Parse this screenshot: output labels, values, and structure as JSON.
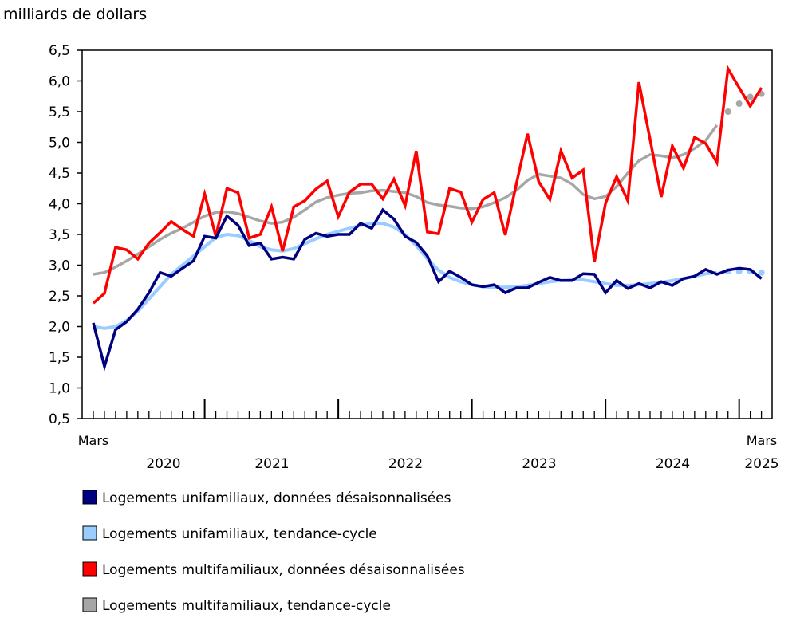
{
  "chart_data": {
    "type": "line",
    "ylabel": "milliards de dollars",
    "ylim": [
      0.5,
      6.5
    ],
    "yticks": [
      "0,5",
      "1,0",
      "1,5",
      "2,0",
      "2,5",
      "3,0",
      "3,5",
      "4,0",
      "4,5",
      "5,0",
      "5,5",
      "6,0",
      "6,5"
    ],
    "ytick_values": [
      0.5,
      1,
      1.5,
      2,
      2.5,
      3,
      3.5,
      4,
      4.5,
      5,
      5.5,
      6,
      6.5
    ],
    "x_start": "Mars 2020",
    "x_end": "Mars 2025",
    "n_months": 61,
    "x_start_label": "Mars",
    "x_end_label": "Mars",
    "years": [
      "2020",
      "2021",
      "2022",
      "2023",
      "2024",
      "2025"
    ],
    "legend": "bottom",
    "series": [
      {
        "name": "Logements unifamiliaux, données désaisonnalisées",
        "color": "#000080",
        "dashed_from": null,
        "values": [
          2.06,
          1.35,
          1.95,
          2.08,
          2.28,
          2.55,
          2.88,
          2.82,
          2.95,
          3.07,
          3.47,
          3.44,
          3.8,
          3.65,
          3.32,
          3.36,
          3.1,
          3.13,
          3.1,
          3.42,
          3.52,
          3.47,
          3.5,
          3.5,
          3.68,
          3.6,
          3.9,
          3.75,
          3.47,
          3.37,
          3.15,
          2.73,
          2.9,
          2.8,
          2.68,
          2.65,
          2.68,
          2.55,
          2.63,
          2.63,
          2.72,
          2.8,
          2.75,
          2.75,
          2.86,
          2.85,
          2.55,
          2.75,
          2.62,
          2.7,
          2.63,
          2.73,
          2.67,
          2.78,
          2.82,
          2.93,
          2.85,
          2.92,
          2.95,
          2.93,
          2.78
        ]
      },
      {
        "name": "Logements unifamiliaux, tendance-cycle",
        "color": "#99ccff",
        "dashed_from": 57,
        "values": [
          2.0,
          1.97,
          2.0,
          2.1,
          2.25,
          2.45,
          2.65,
          2.85,
          3.0,
          3.15,
          3.3,
          3.45,
          3.5,
          3.48,
          3.4,
          3.3,
          3.25,
          3.23,
          3.27,
          3.35,
          3.43,
          3.5,
          3.55,
          3.6,
          3.65,
          3.68,
          3.68,
          3.62,
          3.5,
          3.32,
          3.1,
          2.92,
          2.8,
          2.73,
          2.68,
          2.65,
          2.64,
          2.64,
          2.65,
          2.67,
          2.7,
          2.73,
          2.75,
          2.76,
          2.76,
          2.73,
          2.7,
          2.67,
          2.67,
          2.68,
          2.7,
          2.72,
          2.75,
          2.78,
          2.82,
          2.86,
          2.88,
          2.9,
          2.9,
          2.9,
          2.88
        ]
      },
      {
        "name": "Logements multifamiliaux, données désaisonnalisées",
        "color": "#ff0000",
        "dashed_from": null,
        "values": [
          2.38,
          2.54,
          3.29,
          3.25,
          3.1,
          3.36,
          3.53,
          3.71,
          3.58,
          3.47,
          4.16,
          3.47,
          4.25,
          4.18,
          3.44,
          3.5,
          3.95,
          3.23,
          3.95,
          4.05,
          4.24,
          4.37,
          3.79,
          4.19,
          4.32,
          4.32,
          4.08,
          4.4,
          3.97,
          4.86,
          3.54,
          3.51,
          4.25,
          4.19,
          3.7,
          4.07,
          4.18,
          3.49,
          4.33,
          5.14,
          4.36,
          4.07,
          4.86,
          4.42,
          4.55,
          3.05,
          4.01,
          4.44,
          4.05,
          5.98,
          5.05,
          4.11,
          4.94,
          4.58,
          5.08,
          4.98,
          4.67,
          6.2,
          5.89,
          5.59,
          5.89
        ]
      },
      {
        "name": "Logements multifamiliaux, tendance-cycle",
        "color": "#a6a6a6",
        "dashed_from": 57,
        "values": [
          2.85,
          2.88,
          2.97,
          3.07,
          3.18,
          3.3,
          3.42,
          3.52,
          3.6,
          3.7,
          3.8,
          3.86,
          3.87,
          3.84,
          3.78,
          3.72,
          3.68,
          3.7,
          3.78,
          3.9,
          4.03,
          4.1,
          4.14,
          4.17,
          4.18,
          4.21,
          4.22,
          4.2,
          4.18,
          4.12,
          4.02,
          3.98,
          3.96,
          3.93,
          3.92,
          3.95,
          4.02,
          4.1,
          4.22,
          4.38,
          4.48,
          4.45,
          4.42,
          4.32,
          4.15,
          4.08,
          4.12,
          4.28,
          4.5,
          4.7,
          4.8,
          4.78,
          4.75,
          4.8,
          4.9,
          5.03,
          5.28,
          5.5,
          5.63,
          5.74,
          5.79
        ]
      }
    ]
  }
}
